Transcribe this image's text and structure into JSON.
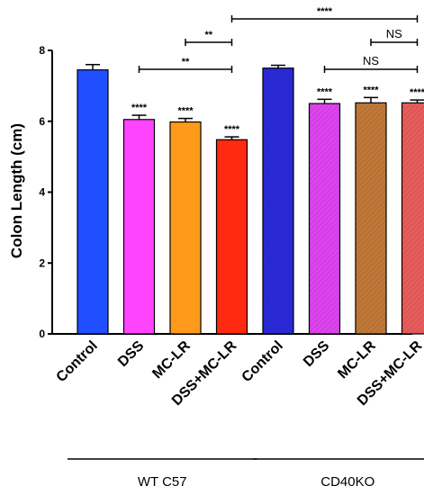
{
  "chart_data": {
    "type": "bar",
    "ylabel": "Colon Length (cm)",
    "ylim": [
      0,
      8
    ],
    "yticks": [
      "0",
      "2",
      "4",
      "6",
      "8"
    ],
    "categories": [
      "Control",
      "DSS",
      "MC-LR",
      "DSS+MC-LR",
      "Control",
      "DSS",
      "MC-LR",
      "DSS+MC-LR"
    ],
    "values": [
      7.45,
      6.05,
      5.98,
      5.48,
      7.5,
      6.5,
      6.52,
      6.52
    ],
    "errors": [
      0.15,
      0.12,
      0.1,
      0.08,
      0.08,
      0.12,
      0.15,
      0.08
    ],
    "colors": [
      "#1f4fff",
      "#ff44ff",
      "#ff9a1a",
      "#ff2a10",
      "#2a2ad8",
      "#dd44ee",
      "#c07838",
      "#e85c5c"
    ],
    "hatched": [
      false,
      false,
      false,
      false,
      true,
      true,
      true,
      true
    ],
    "bar_stars": [
      "",
      "****",
      "****",
      "****",
      "",
      "****",
      "****",
      "****"
    ],
    "groups": [
      {
        "label": "WT C57",
        "from": 0,
        "to": 3
      },
      {
        "label": "CD40KO",
        "from": 4,
        "to": 7
      }
    ],
    "comparisons": [
      {
        "from": 2,
        "to": 3,
        "label": "**",
        "level": 1
      },
      {
        "from": 1,
        "to": 3,
        "label": "**",
        "level": 0
      },
      {
        "from": 3,
        "to": 7,
        "label": "****",
        "level": 2
      },
      {
        "from": 6,
        "to": 7,
        "label": "NS",
        "level": 1
      },
      {
        "from": 5,
        "to": 7,
        "label": "NS",
        "level": 0
      }
    ]
  }
}
